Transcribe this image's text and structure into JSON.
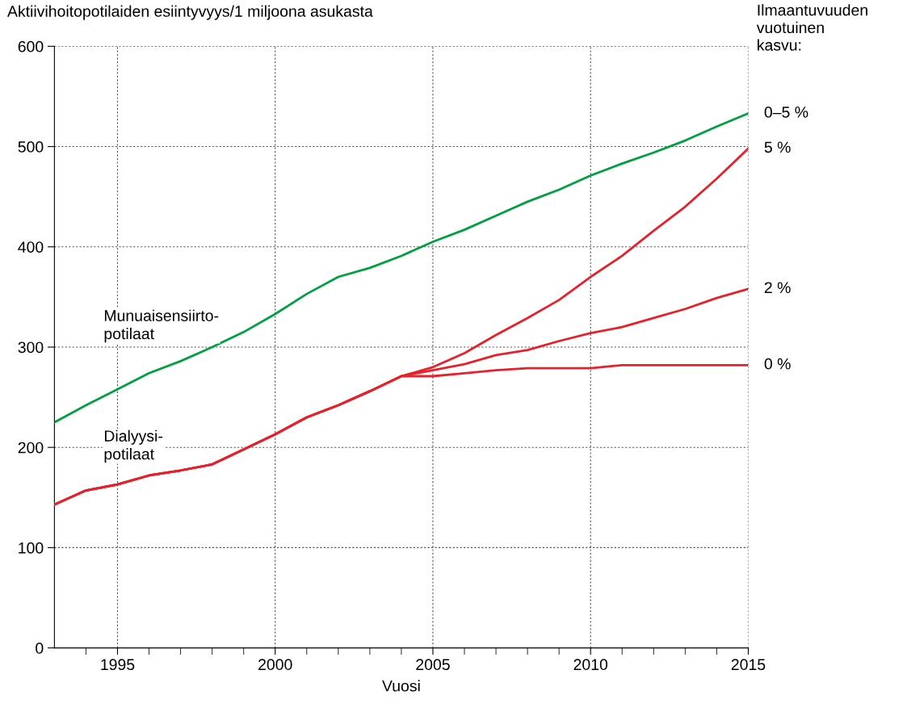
{
  "chart_data": {
    "type": "line",
    "ylabel": "Aktiivihoitopotilaiden esiintyvyys/1 miljoona asukasta",
    "xlabel": "Vuosi",
    "legend_title": "Ilmaantuvuuden\nvuotuinen\nkasvu:",
    "x": [
      1993,
      1994,
      1995,
      1996,
      1997,
      1998,
      1999,
      2000,
      2001,
      2002,
      2003,
      2004,
      2005,
      2006,
      2007,
      2008,
      2009,
      2010,
      2011,
      2012,
      2013,
      2014,
      2015
    ],
    "series": [
      {
        "name": "0–5 %",
        "color": "#00a040",
        "values": [
          225,
          242,
          258,
          274,
          286,
          300,
          315,
          333,
          353,
          370,
          379,
          391,
          405,
          417,
          431,
          445,
          457,
          471,
          483,
          494,
          506,
          520,
          533
        ]
      },
      {
        "name": "5 %",
        "color": "#e8202a",
        "values": [
          143,
          157,
          163,
          172,
          177,
          183,
          198,
          213,
          230,
          242,
          256,
          271,
          280,
          294,
          312,
          329,
          347,
          370,
          391,
          416,
          440,
          468,
          498
        ]
      },
      {
        "name": "2 %",
        "color": "#e8202a",
        "values": [
          143,
          157,
          163,
          172,
          177,
          183,
          198,
          213,
          230,
          242,
          256,
          271,
          277,
          283,
          292,
          297,
          306,
          314,
          320,
          329,
          338,
          349,
          358
        ]
      },
      {
        "name": "0 %",
        "color": "#e8202a",
        "values": [
          143,
          157,
          163,
          172,
          177,
          183,
          198,
          213,
          230,
          242,
          256,
          271,
          271,
          274,
          277,
          279,
          279,
          279,
          282,
          282,
          282,
          282,
          282
        ]
      }
    ],
    "annotations": [
      "Munuaisensiirto-\npotilaat",
      "Dialyysi-\npotilaat"
    ],
    "xlim": [
      1993,
      2015
    ],
    "xticks": [
      {
        "value": 1994,
        "label": null
      },
      1995,
      {
        "value": 1996,
        "label": null
      },
      {
        "value": 1997,
        "label": null
      },
      {
        "value": 1998,
        "label": null
      },
      {
        "value": 1999,
        "label": null
      },
      2000,
      {
        "value": 2001,
        "label": null
      },
      {
        "value": 2002,
        "label": null
      },
      {
        "value": 2003,
        "label": null
      },
      {
        "value": 2004,
        "label": null
      },
      2005,
      {
        "value": 2006,
        "label": null
      },
      {
        "value": 2007,
        "label": null
      },
      {
        "value": 2008,
        "label": null
      },
      {
        "value": 2009,
        "label": null
      },
      2010,
      {
        "value": 2011,
        "label": null
      },
      {
        "value": 2012,
        "label": null
      },
      {
        "value": 2013,
        "label": null
      },
      {
        "value": 2014,
        "label": null
      },
      2015
    ],
    "ylim": [
      0,
      600
    ],
    "yticks": [
      0,
      100,
      200,
      300,
      400,
      500,
      600
    ],
    "grid": true,
    "line_style": "solid",
    "marker": "none"
  }
}
